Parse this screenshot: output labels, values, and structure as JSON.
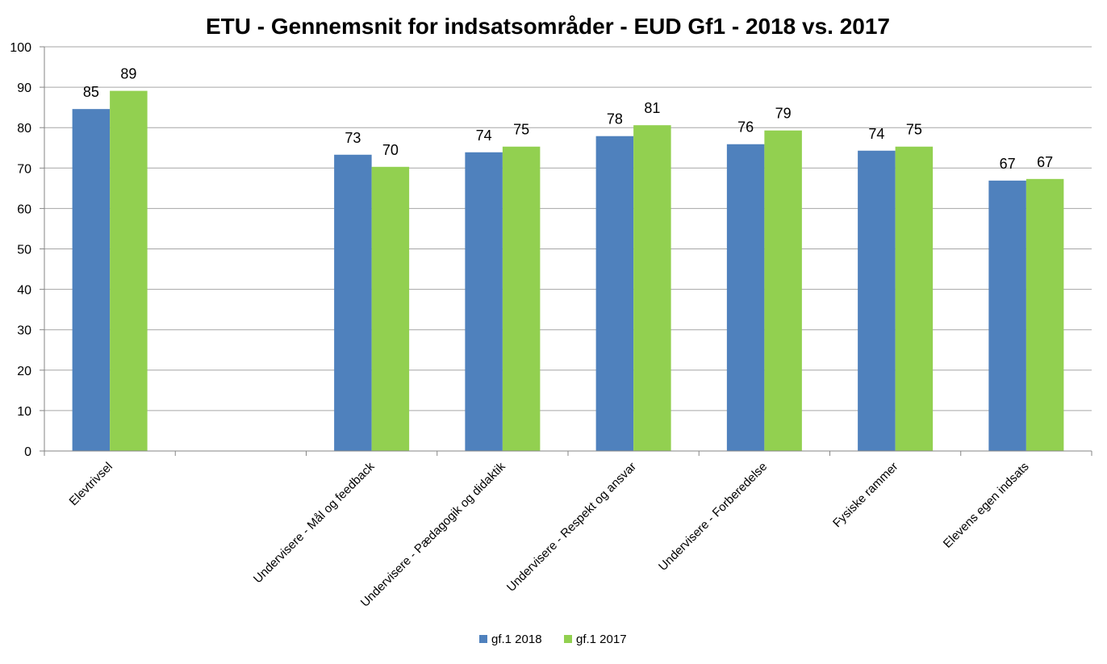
{
  "chart_data": {
    "type": "bar",
    "title": "ETU - Gennemsnit for indsatsområder - EUD Gf1 - 2018 vs. 2017",
    "xlabel": "",
    "ylabel": "",
    "ylim": [
      0,
      100
    ],
    "ytick_step": 10,
    "grid": true,
    "legend_position": "bottom",
    "categories": [
      "Elevtrivsel",
      "",
      "Undervisere - Mål og feedback",
      "Undervisere - Pædagogik og didaktik",
      "Undervisere - Respekt og ansvar",
      "Undervisere - Forberedelse",
      "Fysiske rammer",
      "Elevens egen indsats"
    ],
    "series": [
      {
        "name": "gf.1 2018",
        "color": "#4F81BD",
        "values": [
          84.6,
          null,
          73.3,
          73.9,
          77.9,
          75.9,
          74.3,
          66.9
        ],
        "labels": [
          "85",
          "",
          "73",
          "74",
          "78",
          "76",
          "74",
          "67"
        ]
      },
      {
        "name": "gf.1 2017",
        "color": "#92D050",
        "values": [
          89.1,
          null,
          70.3,
          75.3,
          80.6,
          79.3,
          75.3,
          67.3
        ],
        "labels": [
          "89",
          "",
          "70",
          "75",
          "81",
          "79",
          "75",
          "67"
        ]
      }
    ],
    "gridline_color": "#A6A6A6",
    "axis_color": "#868686"
  }
}
